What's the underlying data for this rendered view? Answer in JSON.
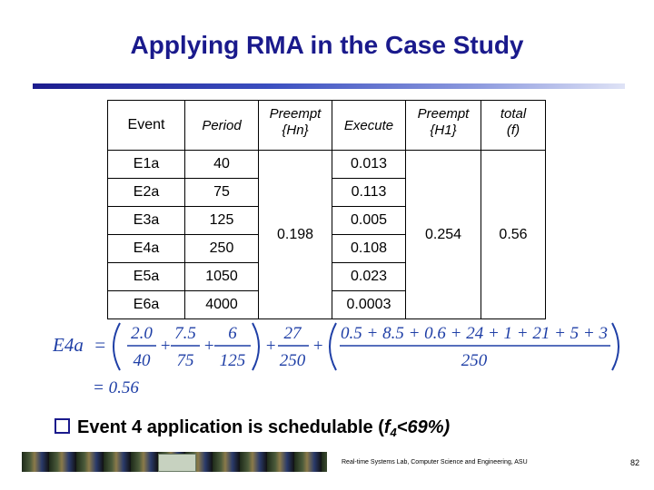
{
  "title": "Applying RMA in the Case Study",
  "table": {
    "headers": [
      "Event",
      "Period",
      "Preempt {Hn}",
      "Execute",
      "Preempt {H1}",
      "total (f)"
    ],
    "header_lines": {
      "preempt_hn": [
        "Preempt",
        "{Hn}"
      ],
      "preempt_h1": [
        "Preempt",
        "{H1}"
      ],
      "total": [
        "total",
        "(f)"
      ]
    },
    "rows": [
      {
        "event": "E1a",
        "period": "40",
        "execute": "0.013"
      },
      {
        "event": "E2a",
        "period": "75",
        "execute": "0.113"
      },
      {
        "event": "E3a",
        "period": "125",
        "execute": "0.005"
      },
      {
        "event": "E4a",
        "period": "250",
        "execute": "0.108"
      },
      {
        "event": "E5a",
        "period": "1050",
        "execute": "0.023"
      },
      {
        "event": "E6a",
        "period": "4000",
        "execute": "0.0003"
      }
    ],
    "preempt_hn_value": "0.198",
    "preempt_h1_value": "0.254",
    "total_value": "0.56"
  },
  "formula": {
    "lhs": "E4a",
    "eq": "=",
    "frac1_num": "2.0",
    "frac1_den": "40",
    "frac2_num": "7.5",
    "frac2_den": "75",
    "frac3_num": "6",
    "frac3_den": "125",
    "frac4_num": "27",
    "frac4_den": "250",
    "frac5_num": "0.5 + 8.5 + 0.6 + 24 + 1 + 21 + 5 + 3",
    "frac5_den": "250",
    "plus": "+",
    "result": "= 0.56"
  },
  "bullet": {
    "prefix": "Event 4 application is schedulable (",
    "f": "f",
    "sub": "4",
    "suffix": "<69%)"
  },
  "footer": {
    "text": "Real-time Systems Lab, Computer Science and Engineering, ASU",
    "page": "82"
  },
  "colors": {
    "title": "#1a1a8c",
    "formula": "#1f3fa6"
  }
}
